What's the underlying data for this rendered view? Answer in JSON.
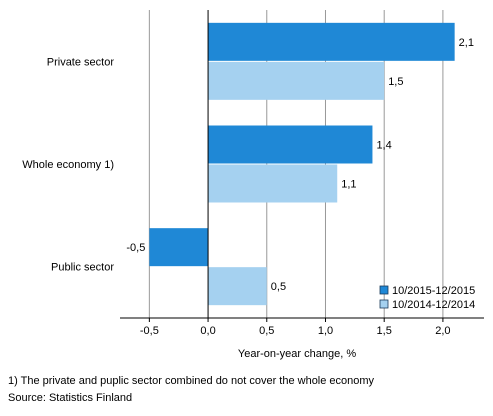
{
  "chart_data": {
    "type": "bar",
    "orientation": "horizontal",
    "title": "",
    "xlabel": "Year-on-year change, %",
    "ylabel": "",
    "categories": [
      "Private sector",
      "Whole economy 1)",
      "Public sector"
    ],
    "series": [
      {
        "name": "10/2015-12/2015",
        "color": "#1f88d6",
        "values": [
          2.1,
          1.4,
          -0.5
        ],
        "labels": [
          "2,1",
          "1,4",
          "-0,5"
        ]
      },
      {
        "name": "10/2014-12/2014",
        "color": "#a5d1f0",
        "values": [
          1.5,
          1.1,
          0.5
        ],
        "labels": [
          "1,5",
          "1,1",
          "0,5"
        ]
      }
    ],
    "xlim": [
      -0.75,
      2.35
    ],
    "ticks": [
      {
        "value": -0.5,
        "label": "-0,5"
      },
      {
        "value": 0.0,
        "label": "0,0"
      },
      {
        "value": 0.5,
        "label": "0,5"
      },
      {
        "value": 1.0,
        "label": "1,0"
      },
      {
        "value": 1.5,
        "label": "1,5"
      },
      {
        "value": 2.0,
        "label": "2,0"
      }
    ],
    "grid": true,
    "legend_position": "bottom-right"
  },
  "footnotes": {
    "note": "1) The private and puplic sector combined do not cover the whole economy",
    "source": "Source: Statistics Finland"
  }
}
